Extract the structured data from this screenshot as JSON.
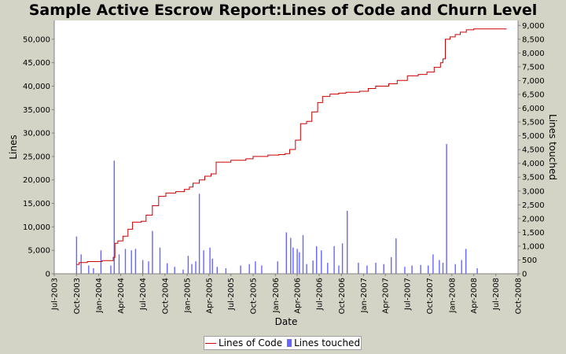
{
  "chart_data": {
    "type": "line+bar",
    "title": "Sample Active Escrow Report:Lines of Code and Churn Level",
    "xlabel": "Date",
    "ylabel_left": "Lines",
    "ylabel_right": "Lines touched",
    "x_range": [
      "2003-07-01",
      "2008-10-01"
    ],
    "x_ticks": [
      "Jul-2003",
      "Oct-2003",
      "Jan-2004",
      "Apr-2004",
      "Jul-2004",
      "Oct-2004",
      "Jan-2005",
      "Apr-2005",
      "Jul-2005",
      "Oct-2005",
      "Jan-2006",
      "Apr-2006",
      "Jul-2006",
      "Oct-2006",
      "Jan-2007",
      "Apr-2007",
      "Jul-2007",
      "Oct-2007",
      "Jan-2008",
      "Apr-2008",
      "Jul-2008",
      "Oct-2008"
    ],
    "y_left_range": [
      0,
      54000
    ],
    "y_left_ticks": [
      "0",
      "5,000",
      "10,000",
      "15,000",
      "20,000",
      "25,000",
      "30,000",
      "35,000",
      "40,000",
      "45,000",
      "50,000"
    ],
    "y_right_range": [
      0,
      9180
    ],
    "y_right_ticks": [
      "0",
      "500",
      "1,000",
      "1,500",
      "2,000",
      "2,500",
      "3,000",
      "3,500",
      "4,000",
      "4,500",
      "5,000",
      "5,500",
      "6,000",
      "6,500",
      "7,000",
      "7,500",
      "8,000",
      "8,500",
      "9,000"
    ],
    "legend_placement": "bottom",
    "series": [
      {
        "name": "Lines of Code",
        "type": "line",
        "color": "#cc0000",
        "x": [
          "2003-10-01",
          "2003-10-12",
          "2003-11-15",
          "2004-01-15",
          "2004-03-01",
          "2004-03-08",
          "2004-03-20",
          "2004-04-10",
          "2004-05-01",
          "2004-05-20",
          "2004-06-25",
          "2004-07-15",
          "2004-08-10",
          "2004-09-05",
          "2004-10-05",
          "2004-11-15",
          "2004-12-20",
          "2005-01-10",
          "2005-01-25",
          "2005-02-20",
          "2005-03-15",
          "2005-04-10",
          "2005-05-01",
          "2005-07-01",
          "2005-09-01",
          "2005-10-01",
          "2005-12-01",
          "2006-01-15",
          "2006-02-10",
          "2006-03-01",
          "2006-03-25",
          "2006-04-15",
          "2006-05-10",
          "2006-06-01",
          "2006-06-25",
          "2006-07-15",
          "2006-08-15",
          "2006-09-20",
          "2006-10-20",
          "2006-12-15",
          "2007-01-20",
          "2007-02-20",
          "2007-04-15",
          "2007-05-20",
          "2007-07-01",
          "2007-08-15",
          "2007-09-20",
          "2007-10-20",
          "2007-11-15",
          "2007-11-25",
          "2007-12-05",
          "2007-12-25",
          "2008-01-15",
          "2008-02-05",
          "2008-03-01",
          "2008-04-01",
          "2008-08-15"
        ],
        "y": [
          2000,
          2400,
          2600,
          2800,
          3500,
          6500,
          7000,
          8000,
          9500,
          11000,
          11200,
          12500,
          14500,
          16500,
          17200,
          17500,
          18000,
          18500,
          19300,
          20000,
          20800,
          21300,
          23800,
          24200,
          24500,
          25000,
          25300,
          25400,
          25600,
          26500,
          28500,
          32000,
          32500,
          34500,
          36500,
          37800,
          38300,
          38500,
          38700,
          38900,
          39500,
          40000,
          40500,
          41200,
          42200,
          42500,
          43000,
          44000,
          45000,
          45800,
          50000,
          50500,
          51000,
          51500,
          52000,
          52200,
          52200
        ]
      },
      {
        "name": "Lines touched",
        "type": "bar",
        "color": "#6666ff",
        "x": [
          "2003-10-01",
          "2003-10-20",
          "2003-11-20",
          "2003-12-10",
          "2004-01-10",
          "2004-02-20",
          "2004-03-05",
          "2004-03-25",
          "2004-04-20",
          "2004-05-15",
          "2004-06-01",
          "2004-07-01",
          "2004-07-25",
          "2004-08-10",
          "2004-09-10",
          "2004-10-10",
          "2004-11-10",
          "2004-12-15",
          "2005-01-05",
          "2005-01-20",
          "2005-02-05",
          "2005-02-20",
          "2005-03-10",
          "2005-04-05",
          "2005-04-15",
          "2005-05-05",
          "2005-06-10",
          "2005-08-10",
          "2005-09-15",
          "2005-10-10",
          "2005-11-05",
          "2006-01-10",
          "2006-02-15",
          "2006-03-05",
          "2006-03-15",
          "2006-04-01",
          "2006-04-10",
          "2006-04-25",
          "2006-05-10",
          "2006-06-05",
          "2006-06-20",
          "2006-07-10",
          "2006-08-05",
          "2006-09-01",
          "2006-09-20",
          "2006-10-05",
          "2006-10-25",
          "2006-12-10",
          "2007-01-15",
          "2007-02-20",
          "2007-03-25",
          "2007-04-25",
          "2007-05-15",
          "2007-06-20",
          "2007-07-20",
          "2007-08-25",
          "2007-09-25",
          "2007-10-15",
          "2007-11-10",
          "2007-11-25",
          "2007-12-10",
          "2008-01-15",
          "2008-02-10",
          "2008-02-28",
          "2008-04-15"
        ],
        "values": [
          1350,
          700,
          300,
          200,
          850,
          300,
          4100,
          700,
          900,
          850,
          900,
          500,
          450,
          1550,
          950,
          380,
          250,
          150,
          650,
          350,
          450,
          2900,
          850,
          950,
          550,
          250,
          200,
          300,
          350,
          450,
          300,
          450,
          1500,
          1300,
          950,
          900,
          780,
          1400,
          350,
          480,
          1000,
          850,
          400,
          1000,
          300,
          1100,
          2280,
          400,
          300,
          400,
          350,
          600,
          1280,
          250,
          300,
          320,
          300,
          700,
          500,
          400,
          4700,
          350,
          500,
          900,
          200
        ]
      }
    ]
  }
}
